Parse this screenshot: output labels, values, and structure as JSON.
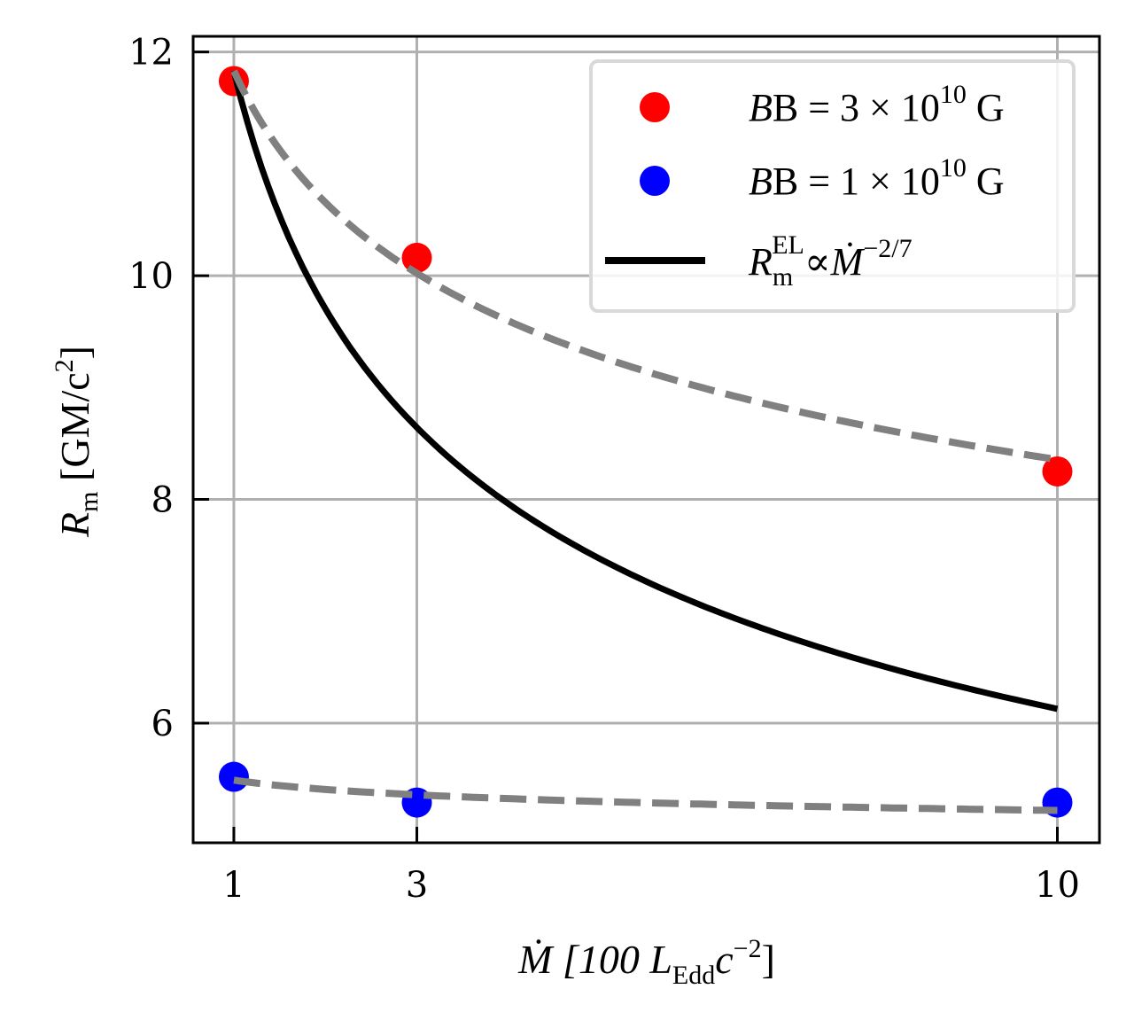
{
  "chart_data": {
    "type": "scatter",
    "title": "",
    "xlabel": "Ṁ [100 L_Edd c^-2]",
    "ylabel": "R_m [GM/c^2]",
    "xlim": [
      0.555,
      10.46
    ],
    "ylim": [
      4.93,
      12.14
    ],
    "grid": true,
    "legend_position": "upper right",
    "x_ticks": [
      1,
      3,
      10
    ],
    "x_tick_labels": [
      "1",
      "3",
      "10"
    ],
    "y_ticks": [
      6,
      8,
      10,
      12
    ],
    "y_tick_labels": [
      "6",
      "8",
      "10",
      "12"
    ],
    "series": [
      {
        "name": "B = 3 × 10^10 G",
        "kind": "scatter",
        "color": "#ff0000",
        "x": [
          1,
          3,
          10
        ],
        "y": [
          11.74,
          10.16,
          8.25
        ]
      },
      {
        "name": "B = 1 × 10^10 G",
        "kind": "scatter",
        "color": "#0000ff",
        "x": [
          1,
          3,
          10
        ],
        "y": [
          5.52,
          5.29,
          5.29
        ]
      },
      {
        "name": "R_m^EL ∝ Ṁ^-2/7",
        "kind": "line",
        "style": "solid",
        "color": "#000000",
        "formula": "11.83 * x^(-2/7)",
        "x": [
          1,
          2,
          3,
          4,
          5,
          6,
          7,
          8,
          9,
          10
        ],
        "y": [
          11.83,
          9.71,
          8.64,
          7.97,
          7.49,
          7.12,
          6.83,
          6.59,
          6.38,
          6.13
        ]
      },
      {
        "name": "fit (B = 3 × 10^10 G)",
        "kind": "line",
        "style": "dashed",
        "color": "#808080",
        "in_legend": false,
        "formula": "11.83 * x^(-0.151)",
        "x": [
          1,
          3,
          10
        ],
        "y": [
          11.83,
          10.02,
          8.35
        ]
      },
      {
        "name": "fit (B = 1 × 10^10 G)",
        "kind": "line",
        "style": "dashed",
        "color": "#808080",
        "in_legend": false,
        "formula": "5.49 * x^(-0.022)",
        "x": [
          1,
          3,
          10
        ],
        "y": [
          5.49,
          5.36,
          5.22
        ]
      }
    ],
    "legend": [
      {
        "label_main": "B = 3 × 10",
        "label_sup": "10",
        "label_tail": " G",
        "marker": "circle",
        "color": "#ff0000"
      },
      {
        "label_main": "B = 1 × 10",
        "label_sup": "10",
        "label_tail": " G",
        "marker": "circle",
        "color": "#0000ff"
      },
      {
        "label_main": "R",
        "label_sub": "m",
        "label_sup": "EL",
        "label_tail": "∝Ṁ",
        "label_sup2": "−2/7",
        "marker": "line",
        "color": "#000000"
      }
    ]
  },
  "axes": {
    "xlabel_parts": {
      "main": "Ṁ [100 L",
      "sub": "Edd",
      "mid": "c",
      "sup": "−2",
      "end": "]"
    },
    "ylabel_parts": {
      "main": "R",
      "sub": "m",
      "mid": " [GM/c",
      "sup": "2",
      "end": "]"
    }
  },
  "colors": {
    "grid": "#b0b0b0",
    "frame": "#000000",
    "legend_border": "#d9d9d9"
  }
}
